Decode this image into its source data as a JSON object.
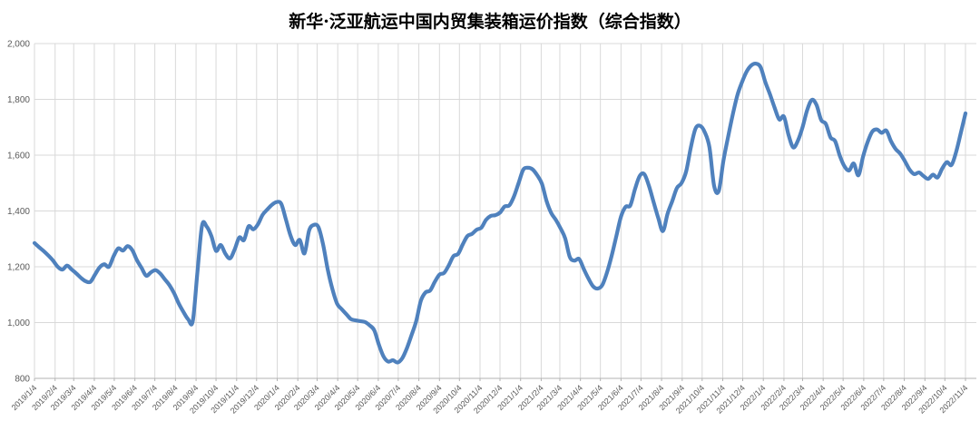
{
  "chart_data": {
    "type": "line",
    "title": "新华·泛亚航运中国内贸集装箱运价指数（综合指数）",
    "legend_position": "none",
    "grid": true,
    "ylim": [
      800,
      2000
    ],
    "y_tick_values": [
      800,
      1000,
      1200,
      1400,
      1600,
      1800,
      2000
    ],
    "y_tick_labels": [
      "800",
      "1,000",
      "1,200",
      "1,400",
      "1,600",
      "1,800",
      "2,000"
    ],
    "x_tick_labels": [
      "2019/1/4",
      "2019/2/4",
      "2019/3/4",
      "2019/4/4",
      "2019/5/4",
      "2019/6/4",
      "2019/7/4",
      "2019/8/4",
      "2019/9/4",
      "2019/10/4",
      "2019/11/4",
      "2019/12/4",
      "2020/1/4",
      "2020/2/4",
      "2020/3/4",
      "2020/4/4",
      "2020/5/4",
      "2020/6/4",
      "2020/7/4",
      "2020/8/4",
      "2020/9/4",
      "2020/10/4",
      "2020/11/4",
      "2020/12/4",
      "2021/1/4",
      "2021/2/4",
      "2021/3/4",
      "2021/4/4",
      "2021/5/4",
      "2021/6/4",
      "2021/7/4",
      "2021/8/4",
      "2021/9/4",
      "2021/10/4",
      "2021/11/4",
      "2021/12/4",
      "2022/1/4",
      "2022/2/4",
      "2022/3/4",
      "2022/4/4",
      "2022/5/4",
      "2022/6/4",
      "2022/7/4",
      "2022/8/4",
      "2022/9/4",
      "2022/10/4",
      "2022/11/4"
    ],
    "series": [
      {
        "name": "综合指数",
        "start_date": "2019/1/4",
        "cadence": "weekly",
        "values": [
          1285,
          1270,
          1256,
          1240,
          1222,
          1200,
          1190,
          1204,
          1190,
          1176,
          1160,
          1148,
          1146,
          1172,
          1198,
          1209,
          1200,
          1238,
          1266,
          1258,
          1274,
          1260,
          1224,
          1196,
          1168,
          1180,
          1188,
          1176,
          1155,
          1134,
          1105,
          1068,
          1038,
          1012,
          1005,
          1180,
          1348,
          1344,
          1310,
          1257,
          1278,
          1247,
          1230,
          1262,
          1305,
          1296,
          1345,
          1334,
          1352,
          1386,
          1405,
          1422,
          1432,
          1426,
          1370,
          1312,
          1278,
          1296,
          1248,
          1330,
          1350,
          1342,
          1280,
          1190,
          1120,
          1068,
          1048,
          1030,
          1012,
          1008,
          1005,
          1002,
          990,
          972,
          920,
          878,
          860,
          865,
          857,
          872,
          908,
          955,
          1005,
          1078,
          1108,
          1115,
          1146,
          1172,
          1178,
          1205,
          1238,
          1246,
          1280,
          1310,
          1318,
          1333,
          1340,
          1368,
          1382,
          1385,
          1394,
          1416,
          1420,
          1452,
          1500,
          1548,
          1555,
          1549,
          1528,
          1498,
          1436,
          1393,
          1368,
          1338,
          1302,
          1235,
          1222,
          1228,
          1192,
          1158,
          1130,
          1122,
          1135,
          1180,
          1240,
          1310,
          1380,
          1415,
          1420,
          1478,
          1525,
          1532,
          1490,
          1432,
          1375,
          1328,
          1390,
          1435,
          1482,
          1500,
          1542,
          1628,
          1695,
          1705,
          1682,
          1628,
          1490,
          1472,
          1580,
          1665,
          1745,
          1815,
          1862,
          1900,
          1922,
          1928,
          1915,
          1862,
          1818,
          1770,
          1728,
          1738,
          1672,
          1628,
          1652,
          1700,
          1762,
          1798,
          1780,
          1726,
          1712,
          1664,
          1650,
          1598,
          1560,
          1545,
          1570,
          1528,
          1595,
          1648,
          1685,
          1692,
          1680,
          1688,
          1650,
          1622,
          1605,
          1578,
          1548,
          1532,
          1538,
          1525,
          1515,
          1530,
          1520,
          1552,
          1575,
          1565,
          1612,
          1680,
          1750
        ]
      }
    ],
    "line_color": "#4f81bd",
    "grid_color": "#d9d9d9",
    "axis_color": "#b3b3b3",
    "tick_label_color": "#595959",
    "title_color": "#000000"
  }
}
